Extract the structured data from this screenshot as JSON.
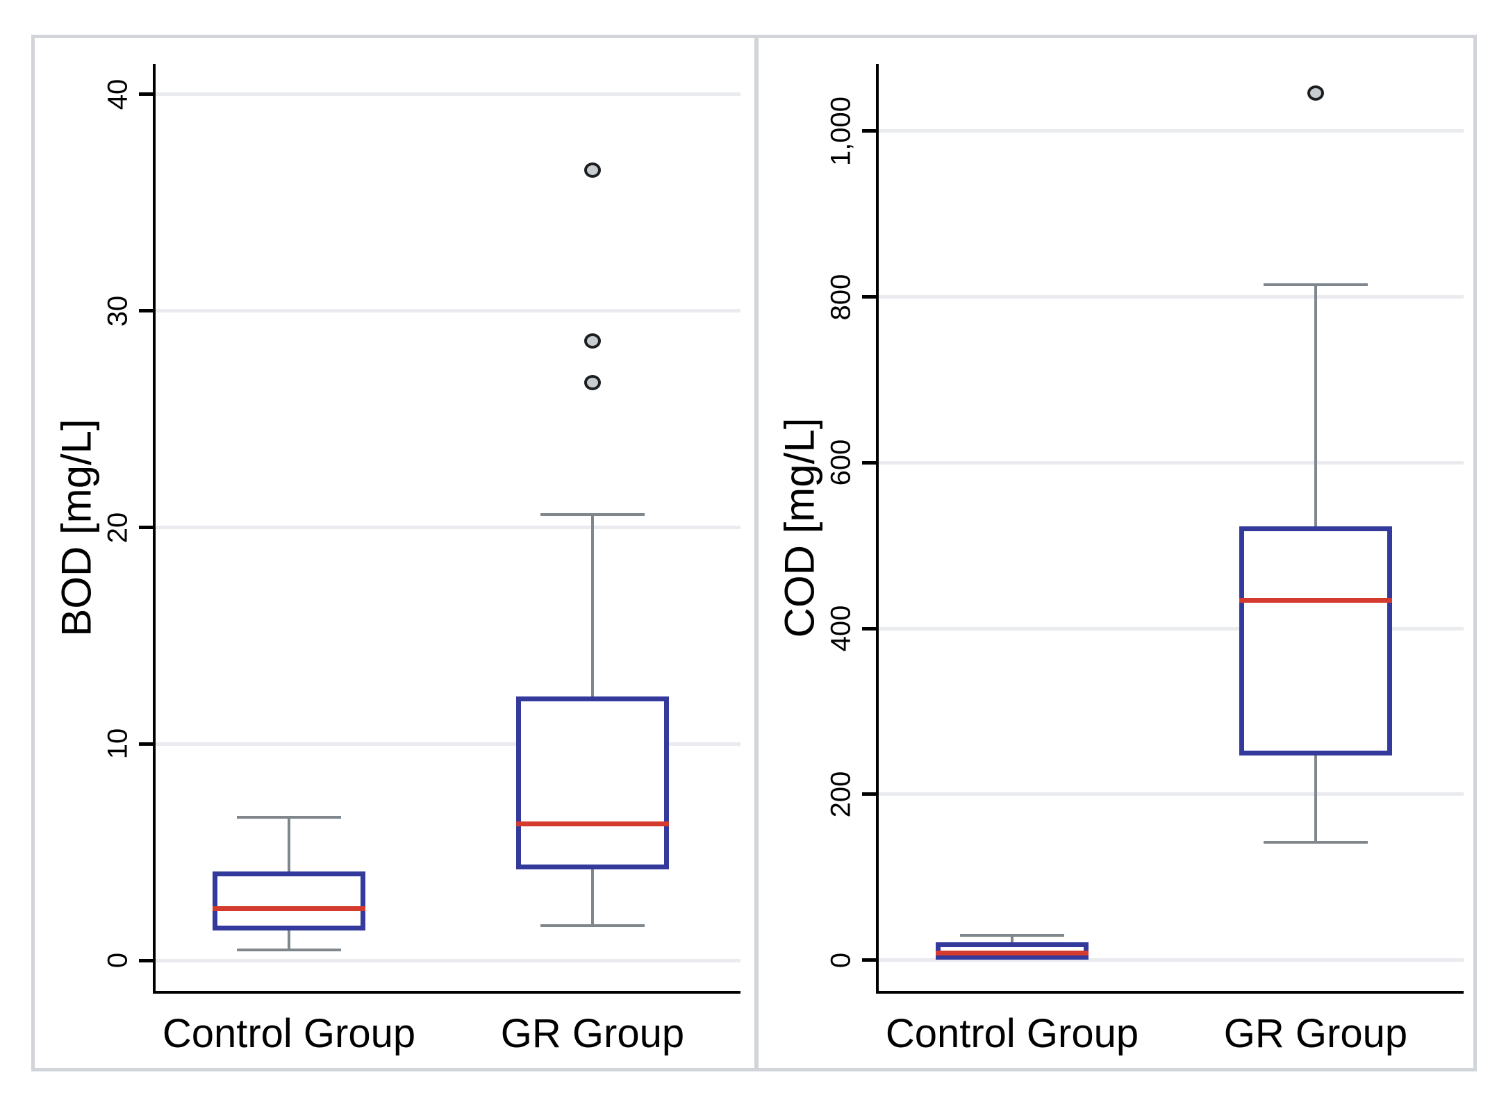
{
  "figure": {
    "background": "#ffffff",
    "frame_color": "#d1d4d8",
    "box_color": "#333a9c",
    "median_color": "#d43b2e",
    "whisker_color": "#7f878d",
    "outlier_fill": "#c7ccd1",
    "outlier_stroke": "#1c1e20",
    "gridline_color": "#e9ebef",
    "axis_color": "#000000",
    "text_color": "#000000"
  },
  "chart_data": [
    {
      "type": "box",
      "title": "",
      "ylabel": "BOD [mg/L]",
      "xlabel": "",
      "categories": [
        "Control Group",
        "GR Group"
      ],
      "yticks": [
        0,
        10,
        20,
        30,
        40
      ],
      "ytick_labels": [
        "0",
        "10",
        "20",
        "30",
        "40"
      ],
      "ylim": [
        -1.4,
        41.4
      ],
      "grid": true,
      "legend": false,
      "series": [
        {
          "name": "Control Group",
          "whisker_low": 0.5,
          "q1": 1.4,
          "median": 2.4,
          "q3": 4.1,
          "whisker_high": 6.6,
          "outliers": []
        },
        {
          "name": "GR Group",
          "whisker_low": 1.6,
          "q1": 4.2,
          "median": 6.3,
          "q3": 12.2,
          "whisker_high": 20.6,
          "outliers": [
            26.7,
            28.6,
            36.5
          ]
        }
      ]
    },
    {
      "type": "box",
      "title": "",
      "ylabel": "COD [mg/L]",
      "xlabel": "",
      "categories": [
        "Control Group",
        "GR Group"
      ],
      "yticks": [
        0,
        200,
        400,
        600,
        800,
        1000
      ],
      "ytick_labels": [
        "0",
        "200",
        "400",
        "600",
        "800",
        "1,000"
      ],
      "ylim": [
        -37,
        1081
      ],
      "grid": true,
      "legend": false,
      "series": [
        {
          "name": "Control Group",
          "whisker_low": 1,
          "q1": 1,
          "median": 9,
          "q3": 22,
          "whisker_high": 30,
          "outliers": []
        },
        {
          "name": "GR Group",
          "whisker_low": 142,
          "q1": 247,
          "median": 434,
          "q3": 523,
          "whisker_high": 815,
          "outliers": [
            1046
          ]
        }
      ]
    }
  ]
}
